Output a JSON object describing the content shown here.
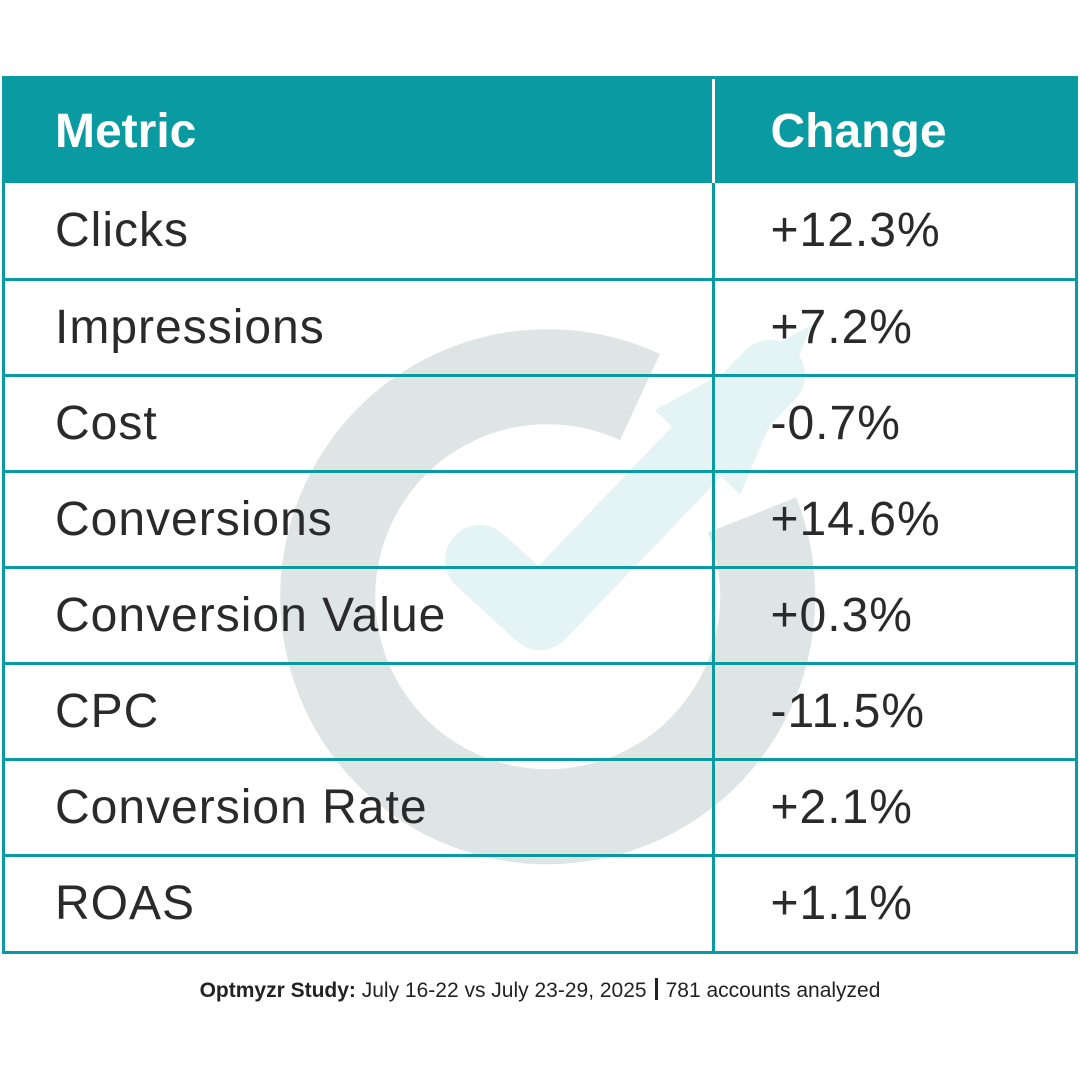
{
  "chart_data": {
    "type": "table",
    "columns": [
      "Metric",
      "Change"
    ],
    "rows": [
      {
        "metric": "Clicks",
        "change": "+12.3%",
        "value": 12.3
      },
      {
        "metric": "Impressions",
        "change": "+7.2%",
        "value": 7.2
      },
      {
        "metric": "Cost",
        "change": "-0.7%",
        "value": -0.7
      },
      {
        "metric": "Conversions",
        "change": "+14.6%",
        "value": 14.6
      },
      {
        "metric": "Conversion Value",
        "change": "+0.3%",
        "value": 0.3
      },
      {
        "metric": "CPC",
        "change": "-11.5%",
        "value": -11.5
      },
      {
        "metric": "Conversion Rate",
        "change": "+2.1%",
        "value": 2.1
      },
      {
        "metric": "ROAS",
        "change": "+1.1%",
        "value": 1.1
      }
    ]
  },
  "footer": {
    "brand": "Optmyzr Study:",
    "period": "July 16-22 vs July 23-29, 2025",
    "accounts": "781 accounts analyzed"
  },
  "colors": {
    "header_bg": "#0a9aa2",
    "border": "#0a9aa2",
    "watermark_ring": "#dfe5e5",
    "watermark_arrow": "#e4f3f4"
  },
  "icons": {
    "watermark": "optmyzr-logo-check-arrow-icon"
  }
}
